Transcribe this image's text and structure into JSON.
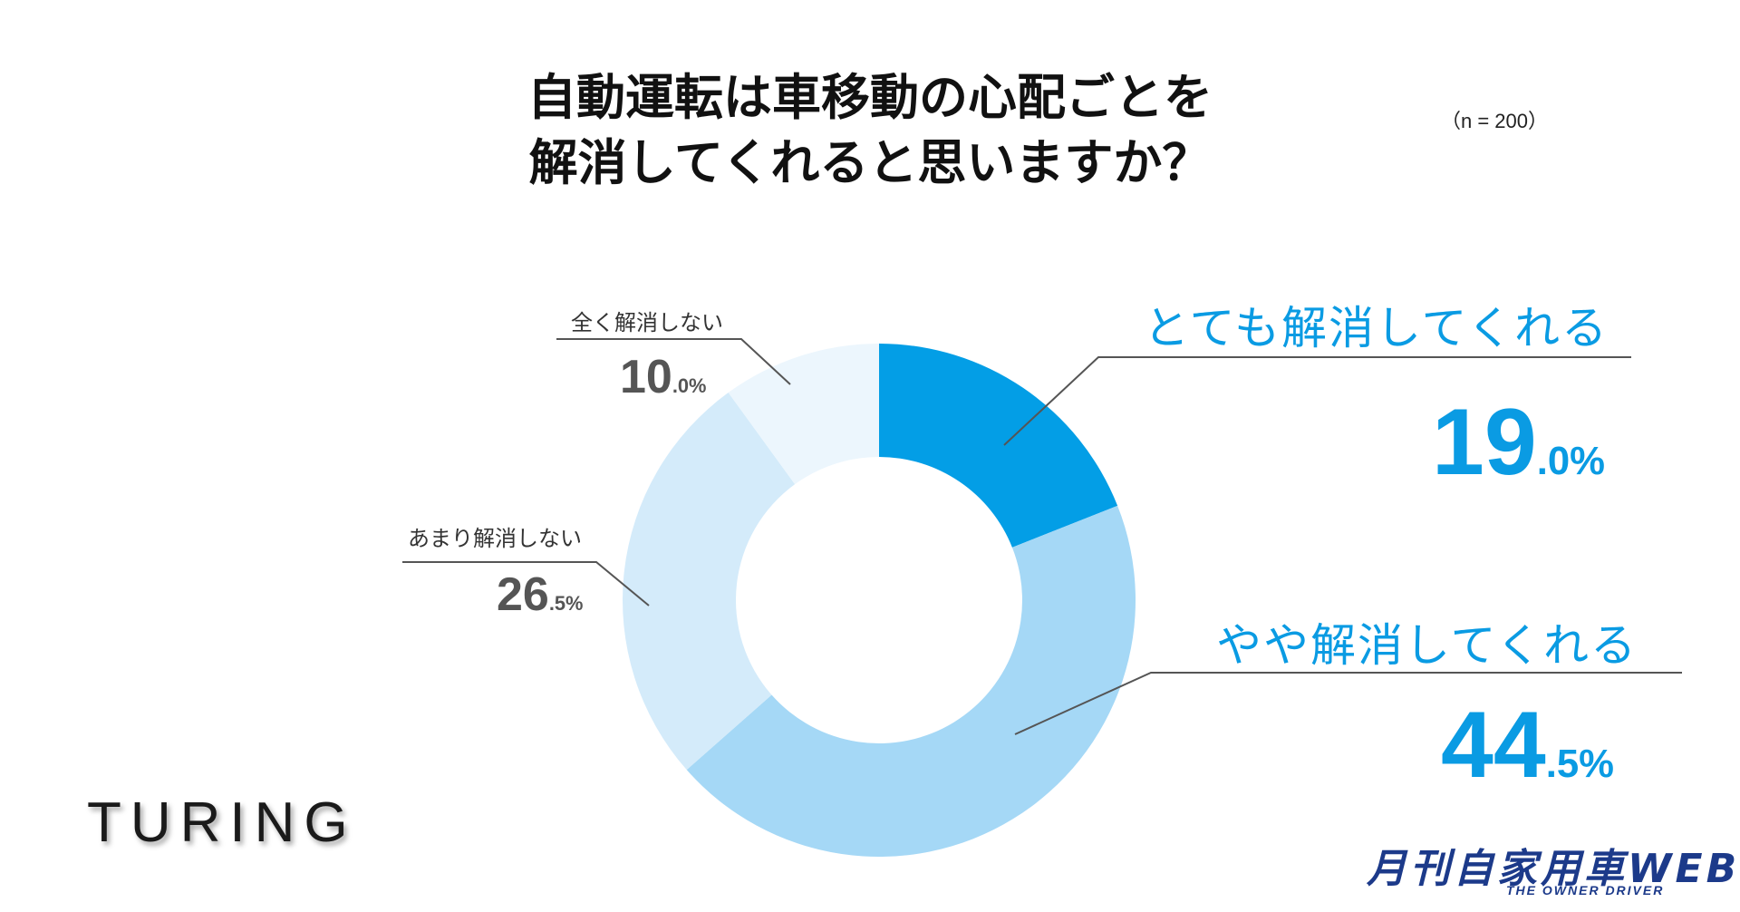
{
  "title_line1": "自動運転は車移動の心配ごとを",
  "title_line2": "解消してくれると思いますか？",
  "sample_size": "（n = 200）",
  "logo_text": "TURING",
  "magazine": {
    "name": "月刊自家用車WEB",
    "tagline": "THE OWNER DRIVER"
  },
  "colors": {
    "very": "#039ee6",
    "somewhat": "#a5d8f6",
    "not_much": "#d4ebfa",
    "not_at_all": "#ecf6fd",
    "accent_text": "#0a9be3",
    "gray_text": "#555555"
  },
  "chart_data": {
    "type": "pie",
    "style": "donut",
    "title": "自動運転は車移動の心配ごとを解消してくれると思いますか？",
    "sample": "n = 200",
    "unit": "%",
    "slices": [
      {
        "label": "とても解消してくれる",
        "value": 19.0,
        "int": "19",
        "dec": ".0%"
      },
      {
        "label": "やや解消してくれる",
        "value": 44.5,
        "int": "44",
        "dec": ".5%"
      },
      {
        "label": "あまり解消しない",
        "value": 26.5,
        "int": "26",
        "dec": ".5%"
      },
      {
        "label": "全く解消しない",
        "value": 10.0,
        "int": "10",
        "dec": ".0%"
      }
    ]
  }
}
